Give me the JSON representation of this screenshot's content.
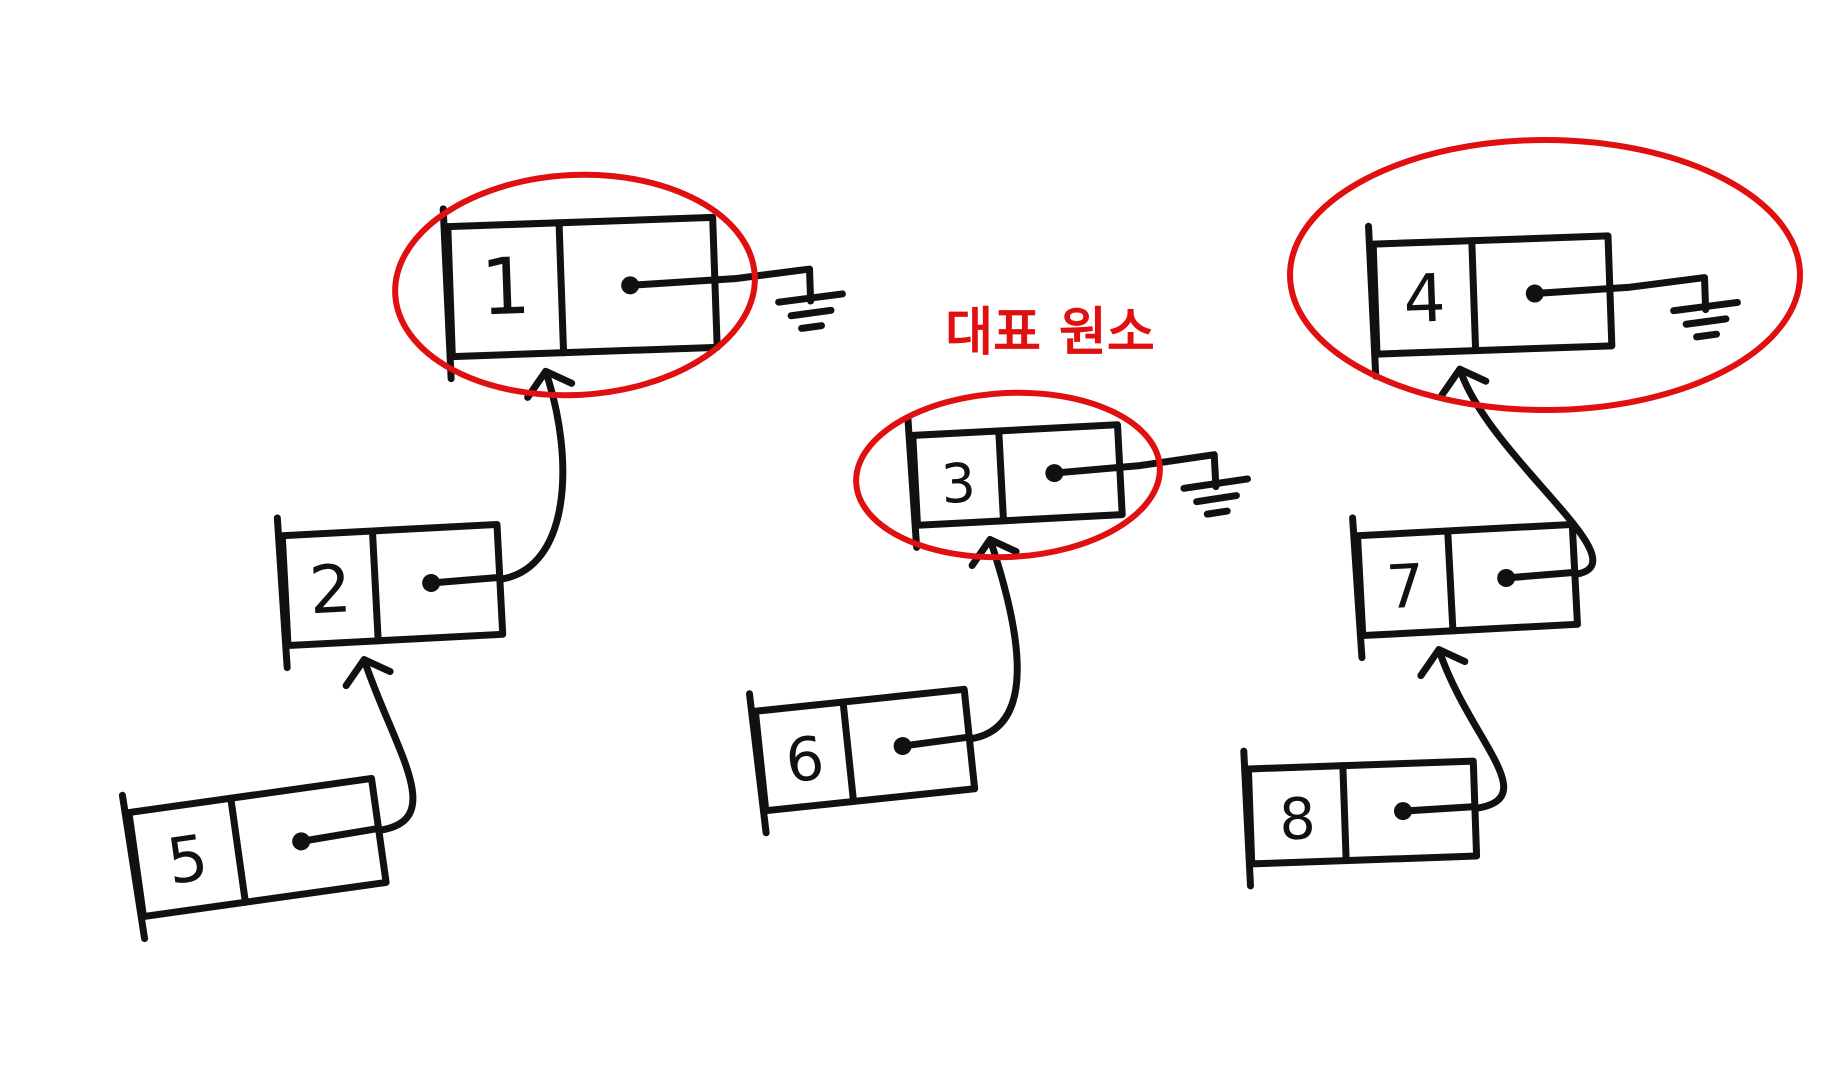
{
  "diagram": {
    "annotation_label": "대표 원소",
    "colors": {
      "ink": "#111111",
      "highlight": "#e01010",
      "background": "#ffffff"
    },
    "nodes": [
      {
        "id": "n1",
        "value": "1",
        "representative": true,
        "null_pointer": true
      },
      {
        "id": "n2",
        "value": "2",
        "representative": false,
        "parent": "n1"
      },
      {
        "id": "n5",
        "value": "5",
        "representative": false,
        "parent": "n2"
      },
      {
        "id": "n3",
        "value": "3",
        "representative": true,
        "null_pointer": true
      },
      {
        "id": "n6",
        "value": "6",
        "representative": false,
        "parent": "n3"
      },
      {
        "id": "n4",
        "value": "4",
        "representative": true,
        "null_pointer": true
      },
      {
        "id": "n7",
        "value": "7",
        "representative": false,
        "parent": "n4"
      },
      {
        "id": "n8",
        "value": "8",
        "representative": false,
        "parent": "n7"
      }
    ]
  }
}
